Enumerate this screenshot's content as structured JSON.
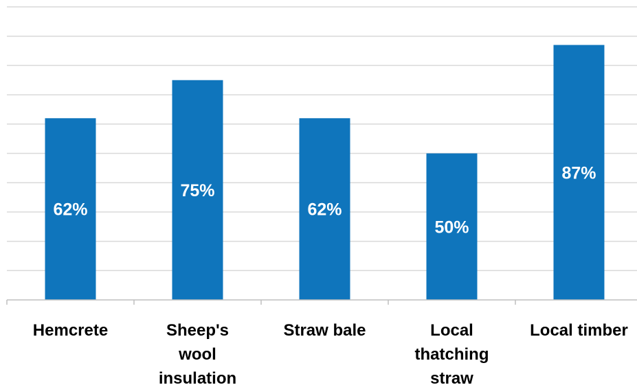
{
  "chart_data": {
    "type": "bar",
    "categories": [
      "Hemcrete",
      "Sheep's wool insulation",
      "Straw bale",
      "Local thatching straw",
      "Local timber"
    ],
    "category_lines": [
      [
        "Hemcrete"
      ],
      [
        "Sheep's",
        "wool",
        "insulation"
      ],
      [
        "Straw bale"
      ],
      [
        "Local",
        "thatching",
        "straw"
      ],
      [
        "Local timber"
      ]
    ],
    "values": [
      62,
      75,
      62,
      50,
      87
    ],
    "data_labels": [
      "62%",
      "75%",
      "62%",
      "50%",
      "87%"
    ],
    "unit": "%",
    "ylim": [
      0,
      100
    ],
    "grid": true,
    "bar_color": "#0f75bc",
    "label_color": "#ffffff",
    "title": "",
    "xlabel": "",
    "ylabel": ""
  }
}
